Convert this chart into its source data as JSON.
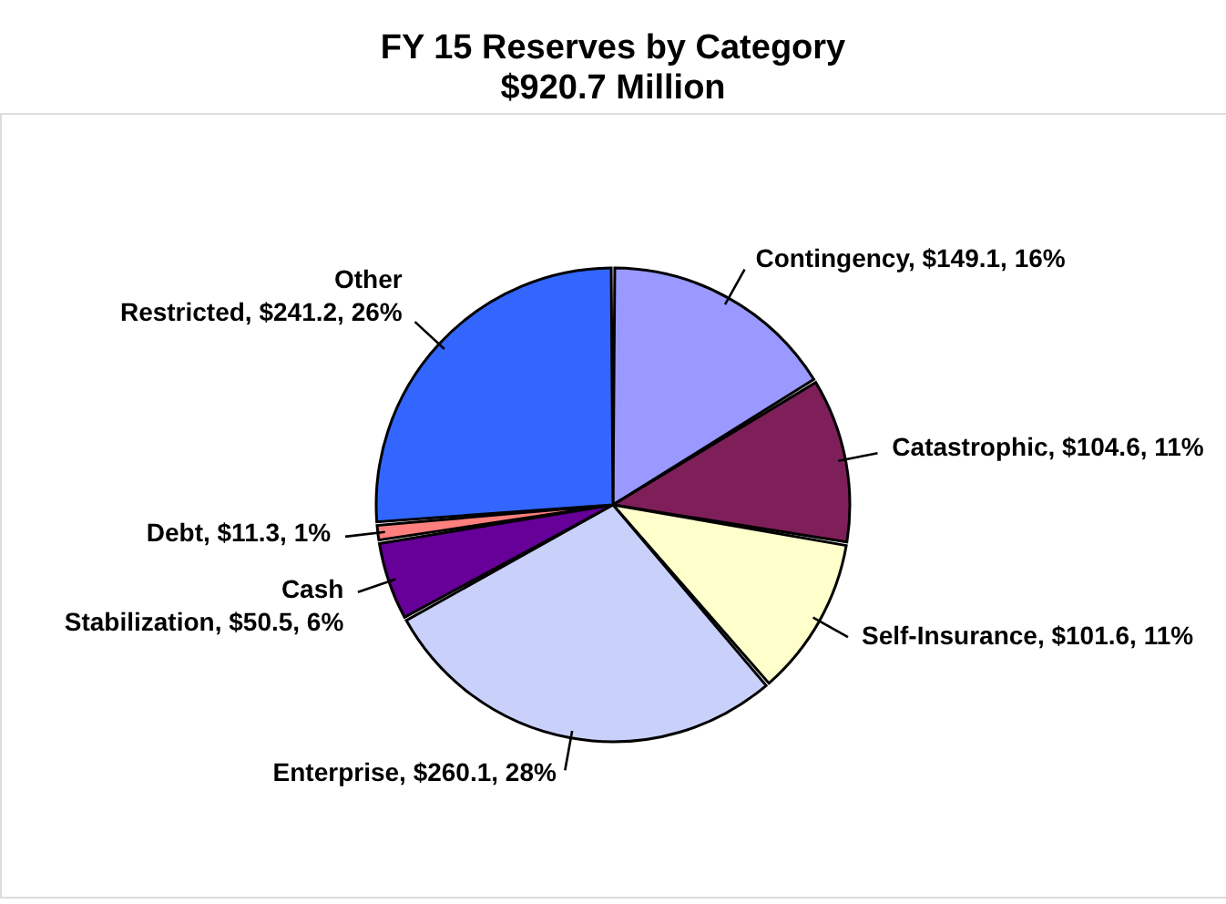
{
  "chart_data": {
    "type": "pie",
    "title": "FY 15 Reserves by Category",
    "subtitle": "$920.7 Million",
    "categories": [
      "Contingency",
      "Catastrophic",
      "Self-Insurance",
      "Enterprise",
      "Cash Stabilization",
      "Debt",
      "Other Restricted"
    ],
    "values": [
      149.1,
      104.6,
      101.6,
      260.1,
      50.5,
      11.3,
      241.2
    ],
    "colors": [
      "#9999ff",
      "#7f1f5a",
      "#ffffcc",
      "#c9d1fb",
      "#660099",
      "#ff7f7f",
      "#3366ff"
    ],
    "value_labels": [
      "$149.1, 16%",
      "$104.6, 11%",
      "$101.6, 11%",
      "$260.1, 28%",
      "$50.5, 6%",
      "$11.3, 1%",
      "$241.2, 26%"
    ],
    "legend": false
  }
}
